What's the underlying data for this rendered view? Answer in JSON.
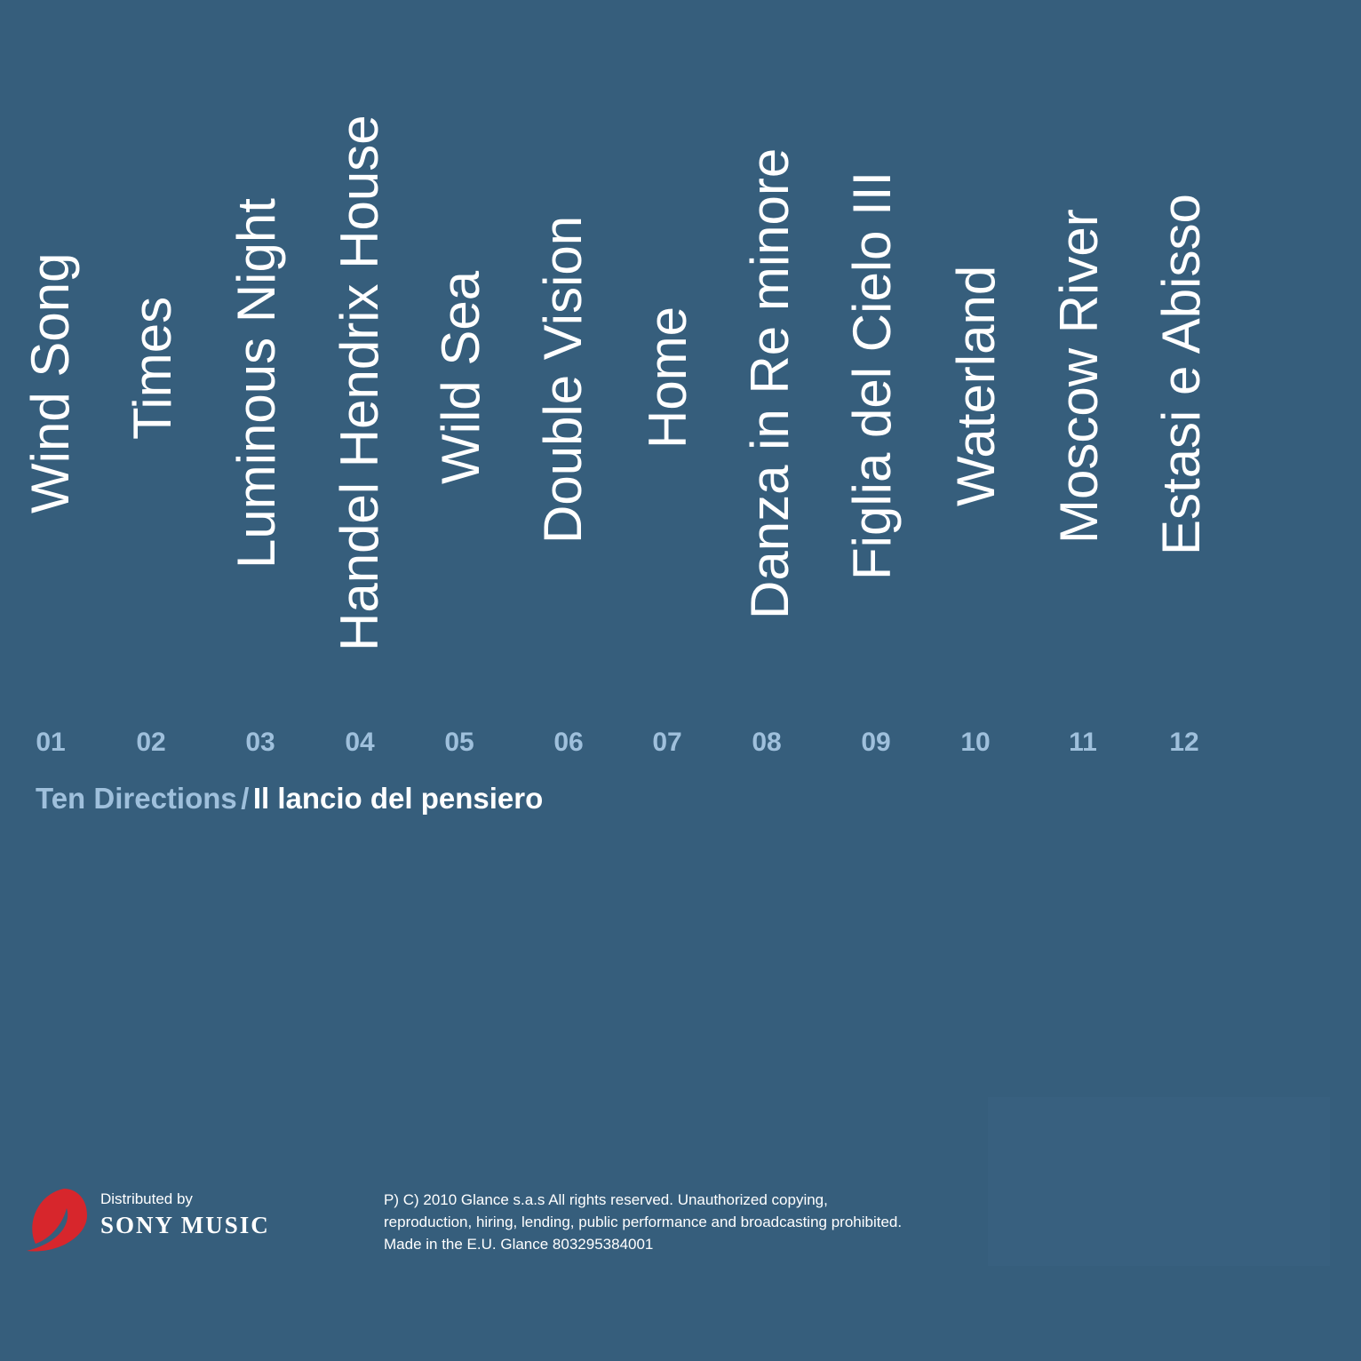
{
  "tracks": [
    {
      "number": "01",
      "title": "Wind Song"
    },
    {
      "number": "02",
      "title": "Times"
    },
    {
      "number": "03",
      "title": "Luminous Night"
    },
    {
      "number": "04",
      "title": "Handel Hendrix House"
    },
    {
      "number": "05",
      "title": "Wild Sea"
    },
    {
      "number": "06",
      "title": "Double Vision"
    },
    {
      "number": "07",
      "title": "Home"
    },
    {
      "number": "08",
      "title": "Danza in Re minore"
    },
    {
      "number": "09",
      "title": "Figlia del Cielo III"
    },
    {
      "number": "10",
      "title": "Waterland"
    },
    {
      "number": "11",
      "title": "Moscow River"
    },
    {
      "number": "12",
      "title": "Estasi e Abisso"
    }
  ],
  "album": {
    "artist": "Ten Directions",
    "separator": "/",
    "title": "Il lancio del pensiero"
  },
  "distributor": {
    "label": "Distributed by",
    "name": "SONY MUSIC"
  },
  "copyright": [
    "P) C) 2010 Glance s.a.s  All rights reserved. Unauthorized copying,",
    "reproduction, hiring, lending, public performance and broadcasting prohibited.",
    "Made in the E.U.  Glance 803295384001"
  ]
}
